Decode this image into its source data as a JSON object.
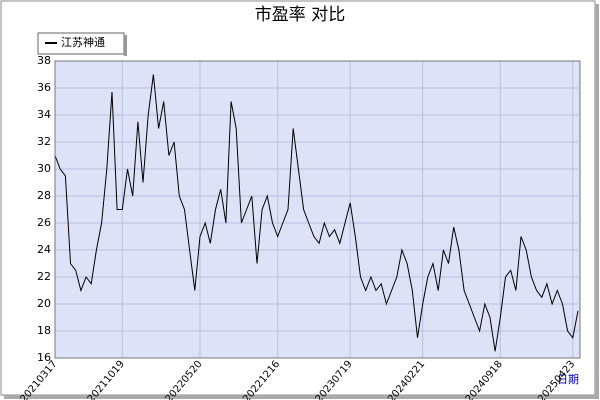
{
  "chart_data": {
    "type": "line",
    "title": "市盈率  对比",
    "xlabel": "日期",
    "x": [
      "20210317",
      "20210401",
      "20210415",
      "20210428",
      "20210520",
      "20210615",
      "20210702",
      "20210720",
      "20210805",
      "20210820",
      "20210903",
      "20210915",
      "20210929",
      "20211019",
      "20211102",
      "20211116",
      "20211130",
      "20211214",
      "20211228",
      "20220112",
      "20220126",
      "20220215",
      "20220301",
      "20220315",
      "20220329",
      "20220415",
      "20220428",
      "20220510",
      "20220520",
      "20220602",
      "20220617",
      "20220701",
      "20220715",
      "20220729",
      "20220812",
      "20220826",
      "20220909",
      "20220923",
      "20221014",
      "20221028",
      "20221111",
      "20221125",
      "20221209",
      "20221216",
      "20221230",
      "20230113",
      "20230203",
      "20230217",
      "20230303",
      "20230317",
      "20230331",
      "20230418",
      "20230505",
      "20230522",
      "20230606",
      "20230620",
      "20230706",
      "20230719",
      "20230802",
      "20230816",
      "20230830",
      "20230913",
      "20230927",
      "20231018",
      "20231101",
      "20231115",
      "20231129",
      "20231213",
      "20231227",
      "20240110",
      "20240124",
      "20240221",
      "20240306",
      "20240320",
      "20240403",
      "20240419",
      "20240506",
      "20240520",
      "20240603",
      "20240617",
      "20240701",
      "20240715",
      "20240729",
      "20240812",
      "20240826",
      "20240906",
      "20240918",
      "20241009",
      "20241023",
      "20241106",
      "20241120",
      "20241204",
      "20241218",
      "20250102",
      "20250116",
      "20250206",
      "20250220",
      "20250306",
      "20250320",
      "20250403",
      "20250423",
      "20250507"
    ],
    "series": [
      {
        "name": "江苏神通",
        "color": "#000000",
        "values": [
          31,
          30,
          29.5,
          23,
          22.5,
          21,
          22,
          21.5,
          24,
          26,
          30,
          35.7,
          27,
          27,
          30,
          28,
          33.5,
          29,
          34,
          37,
          33,
          35,
          31,
          32,
          28,
          27,
          24,
          21,
          25,
          26,
          24.5,
          27,
          28.5,
          26,
          35,
          33,
          26,
          27,
          28,
          23,
          27,
          28,
          26,
          25,
          26,
          27,
          33,
          30,
          27,
          26,
          25,
          24.5,
          26,
          25,
          25.5,
          24.5,
          26,
          27.5,
          25,
          22,
          21,
          22,
          21,
          21.5,
          20,
          21,
          22,
          24,
          23,
          21,
          17.5,
          20,
          22,
          23,
          21,
          24,
          23,
          25.7,
          24,
          21,
          20,
          19,
          18,
          20,
          19,
          16.5,
          19,
          22,
          22.5,
          21,
          25,
          24,
          22,
          21,
          20.5,
          21.5,
          20,
          21,
          20,
          18,
          17.5,
          19.5
        ]
      }
    ],
    "ylim": [
      16,
      38
    ],
    "yticks": [
      16,
      18,
      20,
      22,
      24,
      26,
      28,
      30,
      32,
      34,
      36,
      38
    ],
    "xticks": [
      "20210317",
      "20211019",
      "20220520",
      "20221216",
      "20230719",
      "20240221",
      "20240918",
      "20250423"
    ],
    "grid": true
  }
}
